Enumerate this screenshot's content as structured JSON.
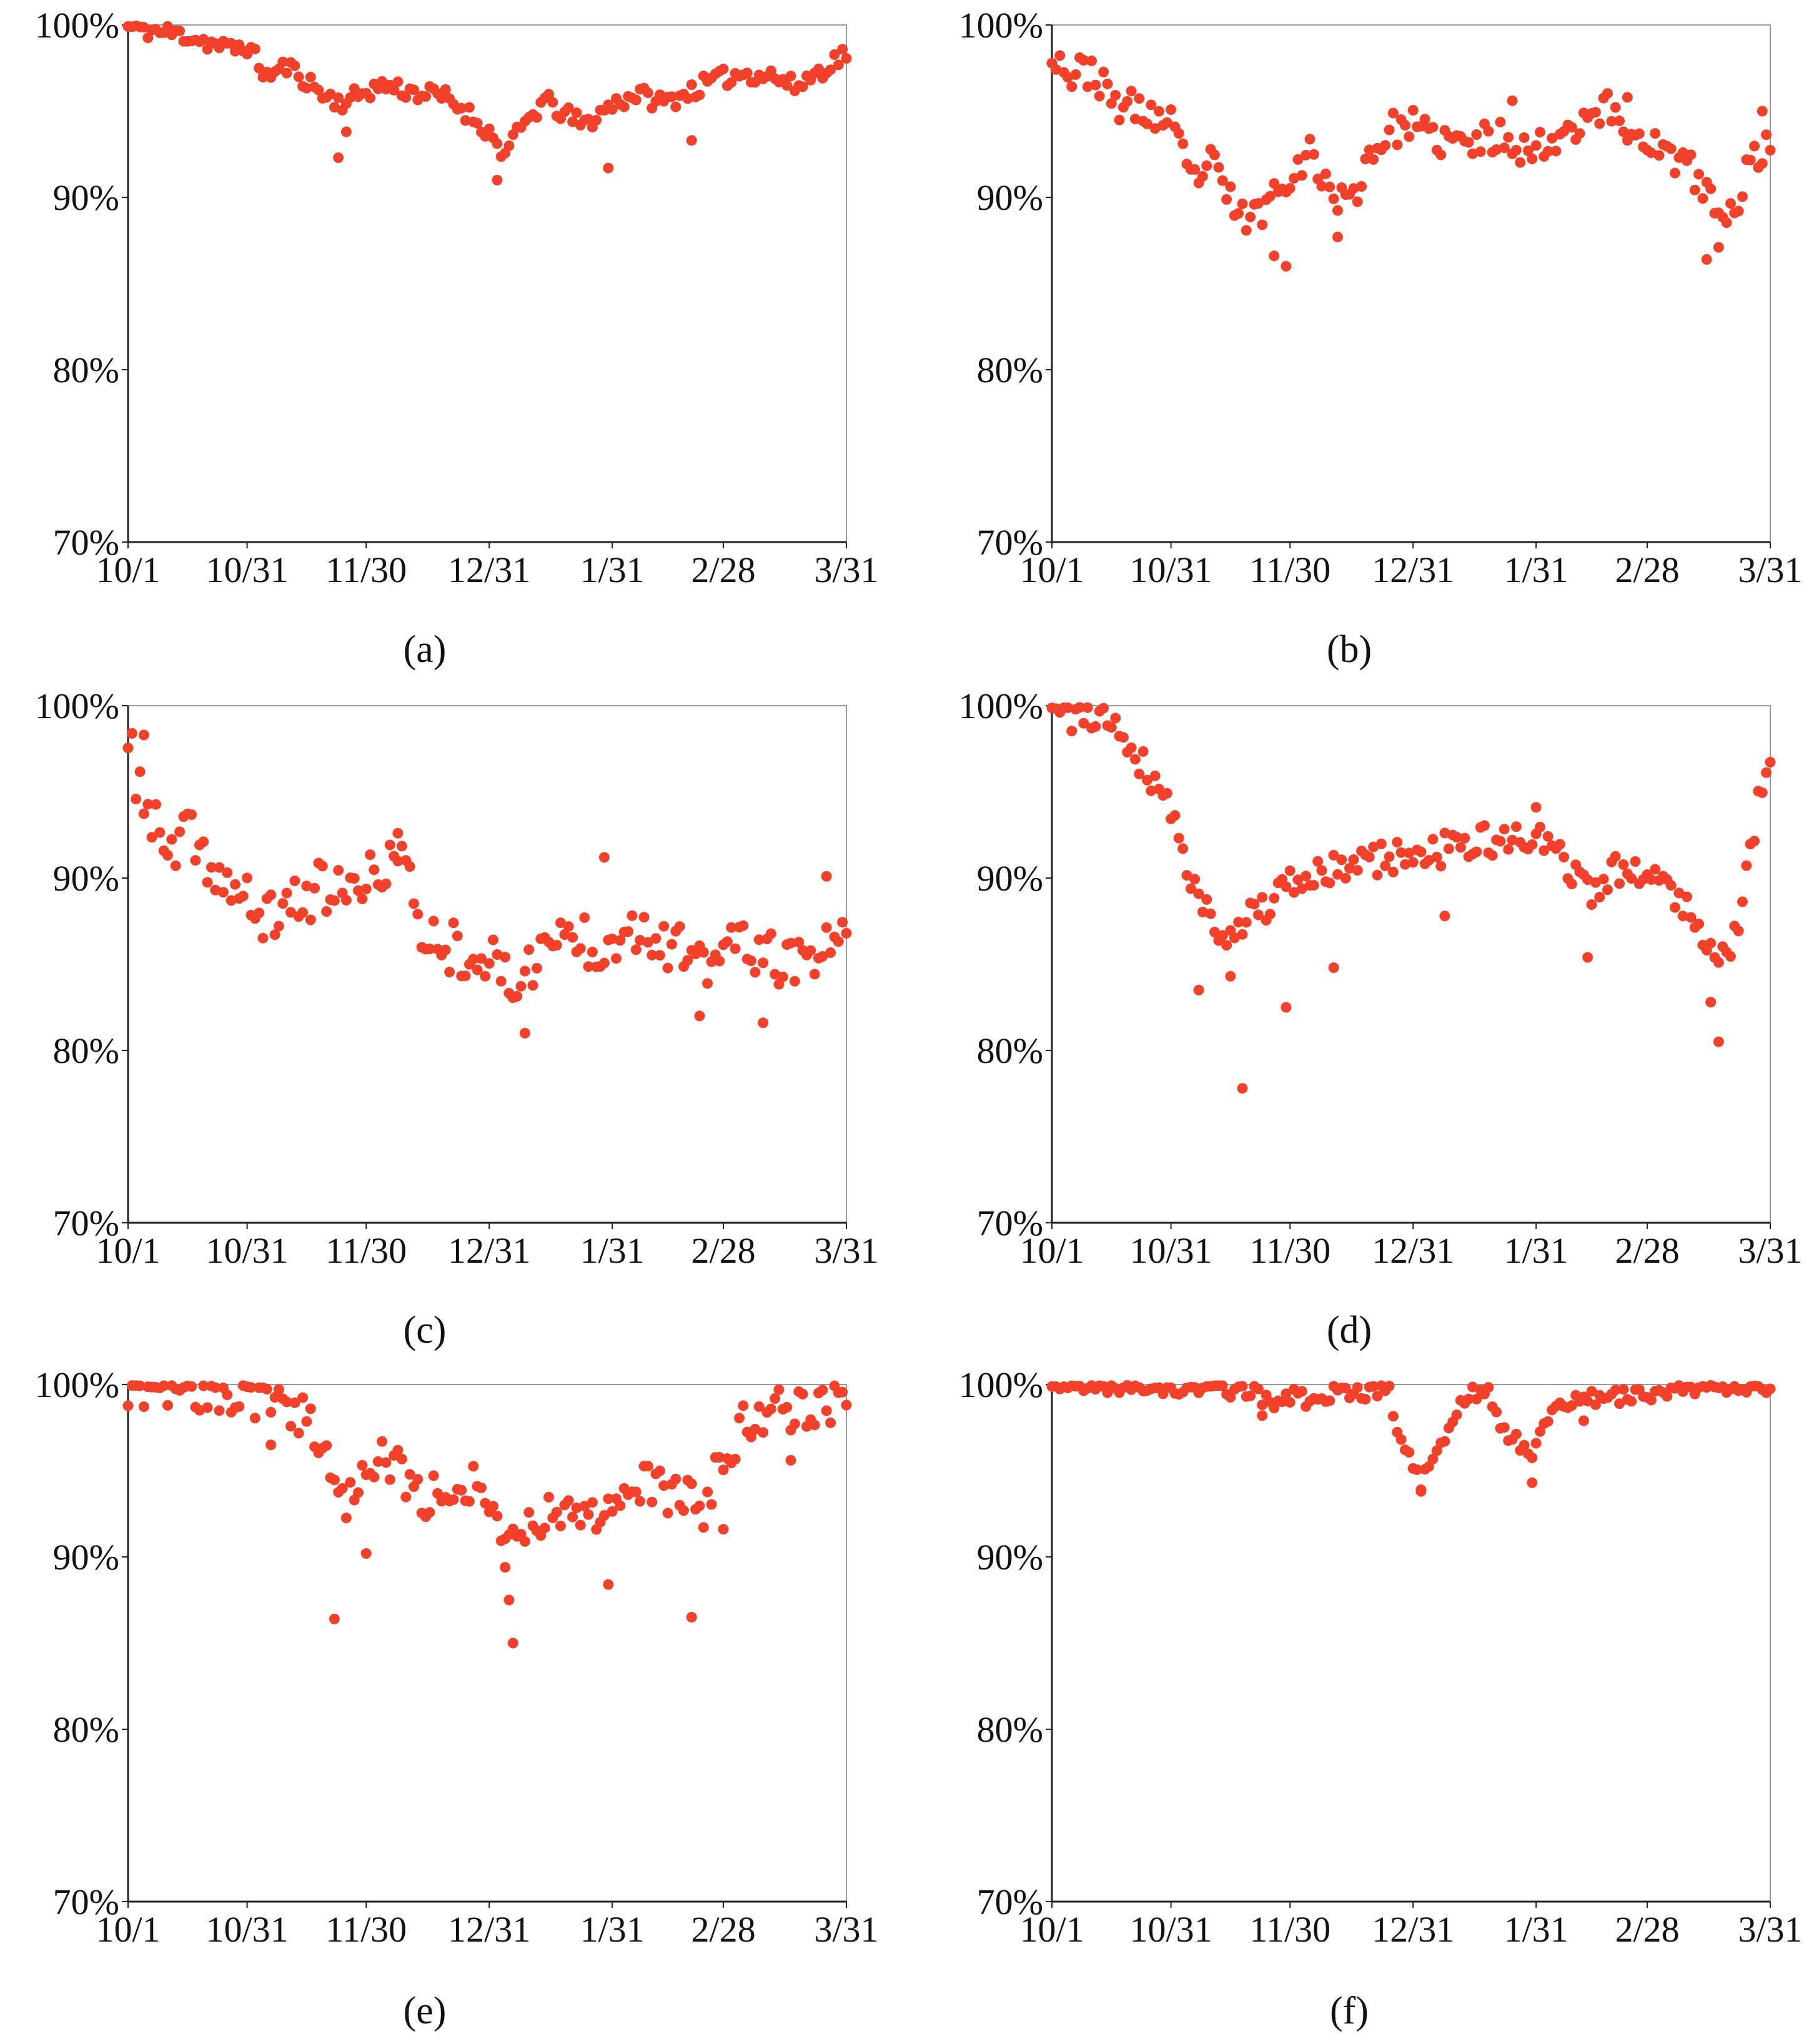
{
  "colors": {
    "marker": "#f2412b",
    "axis": "#222222",
    "frame": "#999999",
    "text": "#111111"
  },
  "chart_data": [
    {
      "panel_label": "(a)",
      "type": "scatter",
      "title": "",
      "xlabel": "",
      "ylabel": "",
      "x_ticks": [
        {
          "day": 0,
          "label": "10/1"
        },
        {
          "day": 30,
          "label": "10/31"
        },
        {
          "day": 60,
          "label": "11/30"
        },
        {
          "day": 91,
          "label": "12/31"
        },
        {
          "day": 122,
          "label": "1/31"
        },
        {
          "day": 150,
          "label": "2/28"
        },
        {
          "day": 181,
          "label": "3/31"
        }
      ],
      "y_ticks": [
        {
          "value": 70,
          "label": "70%"
        },
        {
          "value": 80,
          "label": "80%"
        },
        {
          "value": 90,
          "label": "90%"
        },
        {
          "value": 100,
          "label": "100%"
        }
      ],
      "xlim": [
        0,
        181
      ],
      "ylim": [
        70,
        100
      ],
      "grid": false,
      "anchors": [
        [
          0,
          99.9
        ],
        [
          8,
          99.6
        ],
        [
          15,
          99.4
        ],
        [
          25,
          98.6
        ],
        [
          30,
          98.8
        ],
        [
          35,
          97.0
        ],
        [
          40,
          97.6
        ],
        [
          45,
          96.8
        ],
        [
          50,
          95.8
        ],
        [
          55,
          95.5
        ],
        [
          60,
          96.2
        ],
        [
          65,
          96.5
        ],
        [
          72,
          96.1
        ],
        [
          80,
          95.8
        ],
        [
          85,
          95.0
        ],
        [
          90,
          94.0
        ],
        [
          95,
          92.5
        ],
        [
          100,
          94.3
        ],
        [
          105,
          95.6
        ],
        [
          110,
          94.8
        ],
        [
          115,
          94.2
        ],
        [
          122,
          95.4
        ],
        [
          128,
          96.0
        ],
        [
          135,
          95.5
        ],
        [
          142,
          96.2
        ],
        [
          148,
          96.8
        ],
        [
          155,
          97.2
        ],
        [
          162,
          97.1
        ],
        [
          168,
          96.4
        ],
        [
          174,
          97.3
        ],
        [
          181,
          98.4
        ]
      ],
      "spread": 0.55,
      "outliers": [
        [
          53,
          92.3
        ],
        [
          93,
          91.0
        ],
        [
          121,
          91.7
        ],
        [
          142,
          93.3
        ],
        [
          55,
          93.8
        ]
      ],
      "seed": 11
    },
    {
      "panel_label": "(b)",
      "type": "scatter",
      "title": "",
      "xlabel": "",
      "ylabel": "",
      "x_ticks": [
        {
          "day": 0,
          "label": "10/1"
        },
        {
          "day": 30,
          "label": "10/31"
        },
        {
          "day": 60,
          "label": "11/30"
        },
        {
          "day": 91,
          "label": "12/31"
        },
        {
          "day": 122,
          "label": "1/31"
        },
        {
          "day": 150,
          "label": "2/28"
        },
        {
          "day": 181,
          "label": "3/31"
        }
      ],
      "y_ticks": [
        {
          "value": 70,
          "label": "70%"
        },
        {
          "value": 80,
          "label": "80%"
        },
        {
          "value": 90,
          "label": "90%"
        },
        {
          "value": 100,
          "label": "100%"
        }
      ],
      "xlim": [
        0,
        181
      ],
      "ylim": [
        70,
        100
      ],
      "grid": false,
      "anchors": [
        [
          0,
          98.6
        ],
        [
          5,
          97.0
        ],
        [
          10,
          97.5
        ],
        [
          15,
          95.5
        ],
        [
          20,
          95.2
        ],
        [
          25,
          94.8
        ],
        [
          30,
          94.2
        ],
        [
          35,
          91.0
        ],
        [
          40,
          92.0
        ],
        [
          45,
          89.8
        ],
        [
          50,
          88.5
        ],
        [
          55,
          90.0
        ],
        [
          60,
          91.5
        ],
        [
          65,
          92.5
        ],
        [
          70,
          90.5
        ],
        [
          75,
          89.5
        ],
        [
          80,
          92.5
        ],
        [
          85,
          93.8
        ],
        [
          90,
          94.3
        ],
        [
          95,
          93.4
        ],
        [
          100,
          93.3
        ],
        [
          105,
          93.0
        ],
        [
          110,
          93.4
        ],
        [
          115,
          93.6
        ],
        [
          120,
          92.6
        ],
        [
          125,
          93.2
        ],
        [
          130,
          94.0
        ],
        [
          135,
          94.8
        ],
        [
          140,
          95.2
        ],
        [
          145,
          93.8
        ],
        [
          150,
          93.5
        ],
        [
          155,
          92.4
        ],
        [
          160,
          91.8
        ],
        [
          165,
          90.3
        ],
        [
          170,
          88.2
        ],
        [
          175,
          91.5
        ],
        [
          181,
          93.2
        ]
      ],
      "spread": 1.0,
      "outliers": [
        [
          59,
          86.0
        ],
        [
          56,
          86.6
        ],
        [
          165,
          86.4
        ],
        [
          168,
          87.1
        ],
        [
          72,
          87.7
        ],
        [
          116,
          95.6
        ],
        [
          179,
          95.0
        ],
        [
          145,
          95.8
        ]
      ],
      "seed": 23
    },
    {
      "panel_label": "(c)",
      "type": "scatter",
      "title": "",
      "xlabel": "",
      "ylabel": "",
      "x_ticks": [
        {
          "day": 0,
          "label": "10/1"
        },
        {
          "day": 30,
          "label": "10/31"
        },
        {
          "day": 60,
          "label": "11/30"
        },
        {
          "day": 91,
          "label": "12/31"
        },
        {
          "day": 122,
          "label": "1/31"
        },
        {
          "day": 150,
          "label": "2/28"
        },
        {
          "day": 181,
          "label": "3/31"
        }
      ],
      "y_ticks": [
        {
          "value": 70,
          "label": "70%"
        },
        {
          "value": 80,
          "label": "80%"
        },
        {
          "value": 90,
          "label": "90%"
        },
        {
          "value": 100,
          "label": "100%"
        }
      ],
      "xlim": [
        0,
        181
      ],
      "ylim": [
        70,
        100
      ],
      "grid": false,
      "anchors": [
        [
          0,
          97.5
        ],
        [
          5,
          94.0
        ],
        [
          10,
          91.0
        ],
        [
          15,
          92.5
        ],
        [
          20,
          91.0
        ],
        [
          25,
          89.5
        ],
        [
          30,
          88.5
        ],
        [
          35,
          87.5
        ],
        [
          40,
          88.5
        ],
        [
          45,
          89.0
        ],
        [
          50,
          89.5
        ],
        [
          55,
          89.0
        ],
        [
          60,
          89.5
        ],
        [
          65,
          91.0
        ],
        [
          68,
          91.5
        ],
        [
          75,
          86.5
        ],
        [
          80,
          86.2
        ],
        [
          85,
          85.8
        ],
        [
          90,
          85.5
        ],
        [
          95,
          84.0
        ],
        [
          100,
          84.5
        ],
        [
          105,
          86.0
        ],
        [
          110,
          86.8
        ],
        [
          115,
          86.5
        ],
        [
          120,
          86.0
        ],
        [
          125,
          87.5
        ],
        [
          130,
          87.0
        ],
        [
          135,
          86.5
        ],
        [
          140,
          85.5
        ],
        [
          145,
          84.5
        ],
        [
          150,
          86.0
        ],
        [
          155,
          86.5
        ],
        [
          160,
          85.0
        ],
        [
          165,
          85.5
        ],
        [
          170,
          84.5
        ],
        [
          175,
          86.0
        ],
        [
          181,
          86.0
        ]
      ],
      "spread": 1.6,
      "outliers": [
        [
          100,
          81.0
        ],
        [
          120,
          91.2
        ],
        [
          160,
          81.6
        ],
        [
          144,
          82.0
        ],
        [
          4,
          98.3
        ],
        [
          68,
          92.6
        ],
        [
          176,
          90.1
        ]
      ],
      "seed": 37
    },
    {
      "panel_label": "(d)",
      "type": "scatter",
      "title": "",
      "xlabel": "",
      "ylabel": "",
      "x_ticks": [
        {
          "day": 0,
          "label": "10/1"
        },
        {
          "day": 30,
          "label": "10/31"
        },
        {
          "day": 60,
          "label": "11/30"
        },
        {
          "day": 91,
          "label": "12/31"
        },
        {
          "day": 122,
          "label": "1/31"
        },
        {
          "day": 150,
          "label": "2/28"
        },
        {
          "day": 181,
          "label": "3/31"
        }
      ],
      "y_ticks": [
        {
          "value": 70,
          "label": "70%"
        },
        {
          "value": 80,
          "label": "80%"
        },
        {
          "value": 90,
          "label": "90%"
        },
        {
          "value": 100,
          "label": "100%"
        }
      ],
      "xlim": [
        0,
        181
      ],
      "ylim": [
        70,
        100
      ],
      "grid": false,
      "anchors": [
        [
          0,
          99.6
        ],
        [
          8,
          99.3
        ],
        [
          16,
          99.2
        ],
        [
          20,
          97.6
        ],
        [
          25,
          96.0
        ],
        [
          30,
          94.0
        ],
        [
          35,
          90.0
        ],
        [
          40,
          87.5
        ],
        [
          45,
          87.0
        ],
        [
          50,
          87.8
        ],
        [
          55,
          88.5
        ],
        [
          60,
          89.5
        ],
        [
          65,
          90.0
        ],
        [
          70,
          90.3
        ],
        [
          75,
          90.8
        ],
        [
          80,
          91.0
        ],
        [
          85,
          91.2
        ],
        [
          90,
          91.3
        ],
        [
          95,
          91.5
        ],
        [
          100,
          91.7
        ],
        [
          105,
          91.9
        ],
        [
          110,
          92.1
        ],
        [
          115,
          92.2
        ],
        [
          120,
          92.4
        ],
        [
          125,
          91.8
        ],
        [
          130,
          90.8
        ],
        [
          135,
          89.0
        ],
        [
          140,
          89.8
        ],
        [
          145,
          91.2
        ],
        [
          150,
          90.0
        ],
        [
          155,
          89.5
        ],
        [
          160,
          88.6
        ],
        [
          165,
          86.5
        ],
        [
          170,
          85.0
        ],
        [
          174,
          88.8
        ],
        [
          178,
          94.3
        ],
        [
          181,
          96.3
        ]
      ],
      "spread": 1.0,
      "outliers": [
        [
          48,
          77.8
        ],
        [
          59,
          82.5
        ],
        [
          45,
          84.3
        ],
        [
          37,
          83.5
        ],
        [
          71,
          84.8
        ],
        [
          135,
          85.4
        ],
        [
          168,
          80.5
        ],
        [
          166,
          82.8
        ],
        [
          99,
          87.8
        ],
        [
          122,
          94.1
        ]
      ],
      "seed": 41
    },
    {
      "panel_label": "(e)",
      "type": "scatter",
      "title": "",
      "xlabel": "",
      "ylabel": "",
      "x_ticks": [
        {
          "day": 0,
          "label": "10/1"
        },
        {
          "day": 30,
          "label": "10/31"
        },
        {
          "day": 60,
          "label": "11/30"
        },
        {
          "day": 91,
          "label": "12/31"
        },
        {
          "day": 122,
          "label": "1/31"
        },
        {
          "day": 150,
          "label": "2/28"
        },
        {
          "day": 181,
          "label": "3/31"
        }
      ],
      "y_ticks": [
        {
          "value": 70,
          "label": "70%"
        },
        {
          "value": 80,
          "label": "80%"
        },
        {
          "value": 90,
          "label": "90%"
        },
        {
          "value": 100,
          "label": "100%"
        }
      ],
      "xlim": [
        0,
        181
      ],
      "ylim": [
        70,
        100
      ],
      "grid": false,
      "anchors": [
        [
          0,
          99.9
        ],
        [
          10,
          99.7
        ],
        [
          20,
          99.6
        ],
        [
          30,
          99.3
        ],
        [
          35,
          98.8
        ],
        [
          40,
          99.0
        ],
        [
          45,
          98.0
        ],
        [
          50,
          96.0
        ],
        [
          55,
          93.5
        ],
        [
          60,
          95.0
        ],
        [
          65,
          95.5
        ],
        [
          70,
          94.5
        ],
        [
          75,
          93.5
        ],
        [
          80,
          93.8
        ],
        [
          85,
          94.5
        ],
        [
          90,
          93.5
        ],
        [
          95,
          91.5
        ],
        [
          100,
          91.5
        ],
        [
          105,
          92.5
        ],
        [
          110,
          93.2
        ],
        [
          115,
          92.0
        ],
        [
          120,
          93.0
        ],
        [
          125,
          94.0
        ],
        [
          130,
          94.5
        ],
        [
          135,
          93.5
        ],
        [
          140,
          93.5
        ],
        [
          145,
          93.0
        ],
        [
          150,
          95.5
        ],
        [
          155,
          97.5
        ],
        [
          160,
          98.5
        ],
        [
          165,
          98.7
        ],
        [
          170,
          98.4
        ],
        [
          175,
          98.8
        ],
        [
          181,
          99.6
        ]
      ],
      "spread": 1.3,
      "outliers": [
        [
          52,
          86.4
        ],
        [
          97,
          85.0
        ],
        [
          96,
          87.5
        ],
        [
          95,
          89.4
        ],
        [
          142,
          86.5
        ],
        [
          121,
          88.4
        ],
        [
          60,
          90.2
        ],
        [
          150,
          91.6
        ],
        [
          167,
          95.6
        ],
        [
          36,
          96.5
        ]
      ],
      "seed": 53
    },
    {
      "panel_label": "(f)",
      "type": "scatter",
      "title": "",
      "xlabel": "",
      "ylabel": "",
      "x_ticks": [
        {
          "day": 0,
          "label": "10/1"
        },
        {
          "day": 30,
          "label": "10/31"
        },
        {
          "day": 60,
          "label": "11/30"
        },
        {
          "day": 91,
          "label": "12/31"
        },
        {
          "day": 122,
          "label": "1/31"
        },
        {
          "day": 150,
          "label": "2/28"
        },
        {
          "day": 181,
          "label": "3/31"
        }
      ],
      "y_ticks": [
        {
          "value": 70,
          "label": "70%"
        },
        {
          "value": 80,
          "label": "80%"
        },
        {
          "value": 90,
          "label": "90%"
        },
        {
          "value": 100,
          "label": "100%"
        }
      ],
      "xlim": [
        0,
        181
      ],
      "ylim": [
        70,
        100
      ],
      "grid": false,
      "anchors": [
        [
          0,
          99.9
        ],
        [
          20,
          99.9
        ],
        [
          40,
          99.8
        ],
        [
          50,
          99.6
        ],
        [
          55,
          98.9
        ],
        [
          60,
          99.4
        ],
        [
          65,
          99.1
        ],
        [
          70,
          99.5
        ],
        [
          80,
          99.6
        ],
        [
          85,
          99.6
        ],
        [
          88,
          96.5
        ],
        [
          91,
          95.5
        ],
        [
          93,
          94.2
        ],
        [
          96,
          95.8
        ],
        [
          99,
          97.0
        ],
        [
          102,
          98.5
        ],
        [
          105,
          99.6
        ],
        [
          110,
          99.6
        ],
        [
          113,
          97.5
        ],
        [
          118,
          96.6
        ],
        [
          121,
          96.0
        ],
        [
          124,
          97.8
        ],
        [
          128,
          99.0
        ],
        [
          135,
          99.2
        ],
        [
          140,
          99.2
        ],
        [
          150,
          99.5
        ],
        [
          160,
          99.7
        ],
        [
          170,
          99.8
        ],
        [
          181,
          99.9
        ]
      ],
      "spread": 0.45,
      "outliers": [
        [
          121,
          94.3
        ],
        [
          93,
          93.8
        ],
        [
          53,
          98.2
        ],
        [
          134,
          97.9
        ]
      ],
      "seed": 67
    }
  ]
}
